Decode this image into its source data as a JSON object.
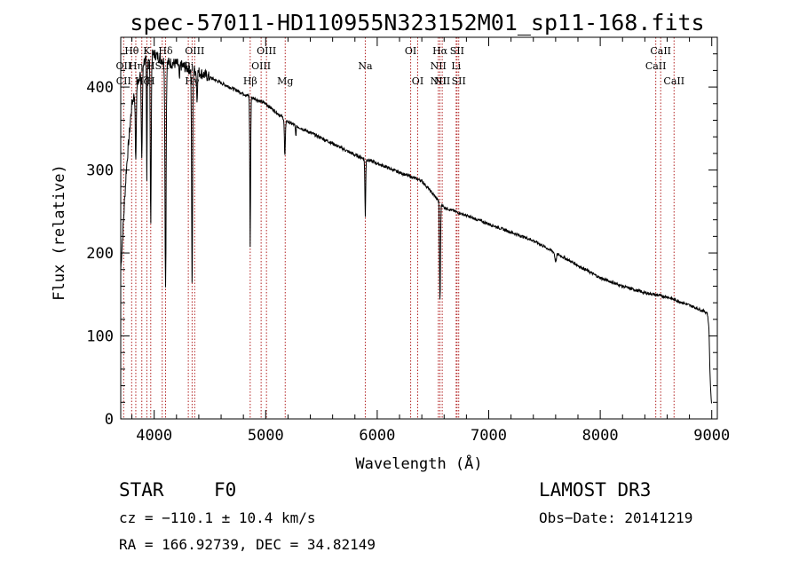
{
  "chart_data": {
    "type": "line",
    "title": "spec-57011-HD110955N323152M01_sp11-168.fits",
    "xlabel": "Wavelength (Å)",
    "ylabel": "Flux (relative)",
    "xlim": [
      3700,
      9050
    ],
    "ylim": [
      0,
      460
    ],
    "xticks": [
      4000,
      5000,
      6000,
      7000,
      8000,
      9000
    ],
    "yticks": [
      0,
      100,
      200,
      300,
      400
    ],
    "continuum": {
      "x": [
        3700,
        3750,
        3800,
        3900,
        4000,
        4100,
        4200,
        4400,
        4600,
        4800,
        5000,
        5200,
        5400,
        5600,
        5800,
        6000,
        6200,
        6400,
        6600,
        6800,
        7000,
        7200,
        7400,
        7600,
        7800,
        8000,
        8200,
        8400,
        8600,
        8800,
        8960,
        8975,
        8985,
        9000
      ],
      "y": [
        180,
        300,
        380,
        430,
        440,
        430,
        428,
        418,
        405,
        392,
        380,
        358,
        345,
        332,
        318,
        308,
        297,
        287,
        255,
        245,
        235,
        225,
        215,
        200,
        185,
        170,
        160,
        152,
        147,
        137,
        128,
        110,
        50,
        12
      ]
    },
    "absorption": [
      {
        "x": 3835,
        "depth": 90,
        "w": 6
      },
      {
        "x": 3889,
        "depth": 110,
        "w": 7
      },
      {
        "x": 3934,
        "depth": 150,
        "w": 4
      },
      {
        "x": 3969,
        "depth": 200,
        "w": 6
      },
      {
        "x": 4102,
        "depth": 270,
        "w": 7
      },
      {
        "x": 4226,
        "depth": 20,
        "w": 5
      },
      {
        "x": 4340,
        "depth": 270,
        "w": 6
      },
      {
        "x": 4384,
        "depth": 35,
        "w": 5
      },
      {
        "x": 4861,
        "depth": 180,
        "w": 5
      },
      {
        "x": 5172,
        "depth": 45,
        "w": 6
      },
      {
        "x": 5270,
        "depth": 12,
        "w": 5
      },
      {
        "x": 5893,
        "depth": 70,
        "w": 5
      },
      {
        "x": 6563,
        "depth": 120,
        "w": 6
      },
      {
        "x": 7600,
        "depth": 10,
        "w": 10
      }
    ],
    "lines": [
      {
        "name": "Hθ",
        "x": 3798,
        "row": 0,
        "font": 11
      },
      {
        "name": "K",
        "x": 3934,
        "row": 0,
        "font": 11
      },
      {
        "name": "Hδ",
        "x": 4102,
        "row": 0,
        "font": 11
      },
      {
        "name": "OII",
        "x": 3727,
        "row": 1,
        "font": 11
      },
      {
        "name": "Hη",
        "x": 3835,
        "row": 1,
        "font": 11
      },
      {
        "name": "H",
        "x": 3969,
        "row": 1,
        "font": 11
      },
      {
        "name": "SII",
        "x": 4072,
        "row": 1,
        "font": 11
      },
      {
        "name": "CII",
        "x": 3726,
        "row": 2,
        "font": 11
      },
      {
        "name": "Hζ",
        "x": 3889,
        "row": 2,
        "font": 11
      },
      {
        "name": "H",
        "x": 3969,
        "row": 2,
        "font": 11
      },
      {
        "name": "OIII",
        "x": 4363,
        "row": 0,
        "font": 11
      },
      {
        "name": "Gj",
        "x": 4306,
        "row": 1,
        "font": 11
      },
      {
        "name": "Hγ",
        "x": 4340,
        "row": 2,
        "font": 11
      },
      {
        "name": "Hβ",
        "x": 4861,
        "row": 2,
        "font": 11
      },
      {
        "name": "OIII",
        "x": 4959,
        "row": 1,
        "font": 11
      },
      {
        "name": "OIII",
        "x": 5007,
        "row": 0,
        "font": 11
      },
      {
        "name": "Mg",
        "x": 5175,
        "row": 2,
        "font": 11
      },
      {
        "name": "Na",
        "x": 5893,
        "row": 1,
        "font": 11
      },
      {
        "name": "OI",
        "x": 6300,
        "row": 0,
        "font": 11
      },
      {
        "name": "OI",
        "x": 6363,
        "row": 2,
        "font": 11
      },
      {
        "name": "NII",
        "x": 6548,
        "row": 1,
        "font": 11
      },
      {
        "name": "NII",
        "x": 6548,
        "row": 2,
        "font": 11
      },
      {
        "name": "Hα",
        "x": 6563,
        "row": 0,
        "font": 11
      },
      {
        "name": "NII",
        "x": 6583,
        "row": 2,
        "font": 11
      },
      {
        "name": "Li",
        "x": 6708,
        "row": 1,
        "font": 11
      },
      {
        "name": "SII",
        "x": 6716,
        "row": 0,
        "font": 11
      },
      {
        "name": "SII",
        "x": 6731,
        "row": 2,
        "font": 11
      },
      {
        "name": "CaII",
        "x": 8498,
        "row": 1,
        "font": 11
      },
      {
        "name": "CaII",
        "x": 8542,
        "row": 0,
        "font": 11
      },
      {
        "name": "CaII",
        "x": 8662,
        "row": 2,
        "font": 11
      }
    ],
    "marker_lines": [
      3726,
      3798,
      3835,
      3889,
      3934,
      3969,
      4072,
      4102,
      4306,
      4340,
      4363,
      4861,
      4959,
      5007,
      5175,
      5893,
      6300,
      6363,
      6548,
      6563,
      6583,
      6708,
      6716,
      6731,
      8498,
      8542,
      8662
    ]
  },
  "info": {
    "star_label": "STAR",
    "spectral_type": "F0",
    "survey": "LAMOST DR3",
    "cz": "cz = −110.1 ± 10.4 km/s",
    "obs_date": "Obs−Date: 20141219",
    "coords": "RA = 166.92739, DEC =  34.82149"
  },
  "colors": {
    "axis": "#000000",
    "spectrum": "#000000",
    "marker": "#b22222"
  }
}
